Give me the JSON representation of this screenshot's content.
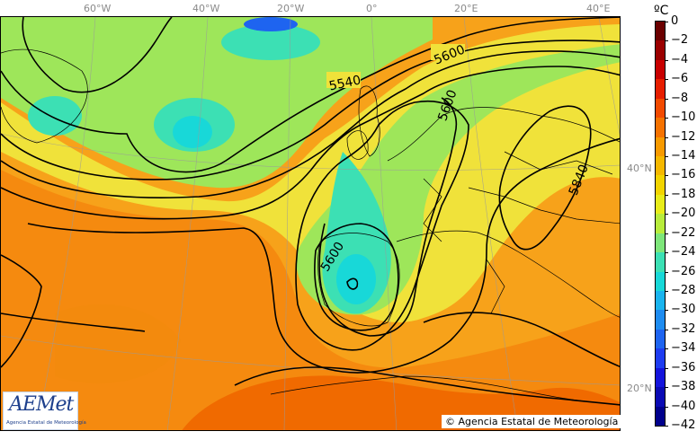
{
  "map": {
    "longitude_labels": [
      "60°W",
      "40°W",
      "20°W",
      "0°",
      "20°E",
      "40°E"
    ],
    "latitude_labels": [
      "40°N",
      "20°N"
    ],
    "contour_labels": [
      "5540",
      "5600",
      "5600",
      "5600",
      "5840"
    ],
    "copyright": "© Agencia Estatal de Meteorología"
  },
  "logo": {
    "word": "AEMet",
    "subtitle": "Agencia Estatal de Meteorología"
  },
  "colorbar": {
    "unit": "ºC",
    "ticks": [
      "0",
      "−2",
      "−4",
      "−6",
      "−8",
      "−10",
      "−12",
      "−14",
      "−16",
      "−18",
      "−20",
      "−22",
      "−24",
      "−26",
      "−28",
      "−30",
      "−32",
      "−34",
      "−36",
      "−38",
      "−40",
      "−42"
    ],
    "colors": [
      "#6b0000",
      "#9b0000",
      "#c80000",
      "#e61e00",
      "#f24a00",
      "#f57200",
      "#f79a00",
      "#f5b800",
      "#f2d400",
      "#e8ec1a",
      "#b8ec3c",
      "#7ee67a",
      "#3ce0b4",
      "#18d8d8",
      "#1ab4ee",
      "#1e8cf0",
      "#1e64f0",
      "#1e3cf0",
      "#1414dc",
      "#0a0ab4",
      "#00008c"
    ]
  }
}
